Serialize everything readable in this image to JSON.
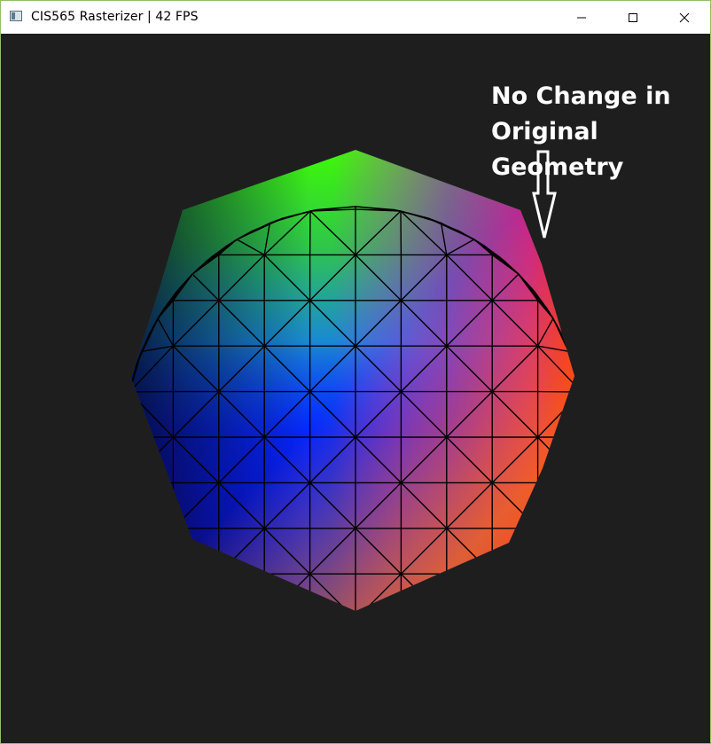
{
  "window": {
    "title": "CIS565 Rasterizer | 42 FPS",
    "icon": "app-window-icon",
    "controls": [
      "minimize-icon",
      "maximize-icon",
      "close-icon"
    ]
  },
  "scene": {
    "background_color": "#1e1e1e",
    "object": "wireframe shaded sphere mesh",
    "colors": {
      "top": "#39ff00",
      "center": "#0a10ff",
      "right_edge": "#ff0020",
      "left_edge": "#10106a"
    }
  },
  "annotation": {
    "lines": [
      "No Change in",
      "Original",
      "Geometry"
    ],
    "color": "#ffffff"
  }
}
